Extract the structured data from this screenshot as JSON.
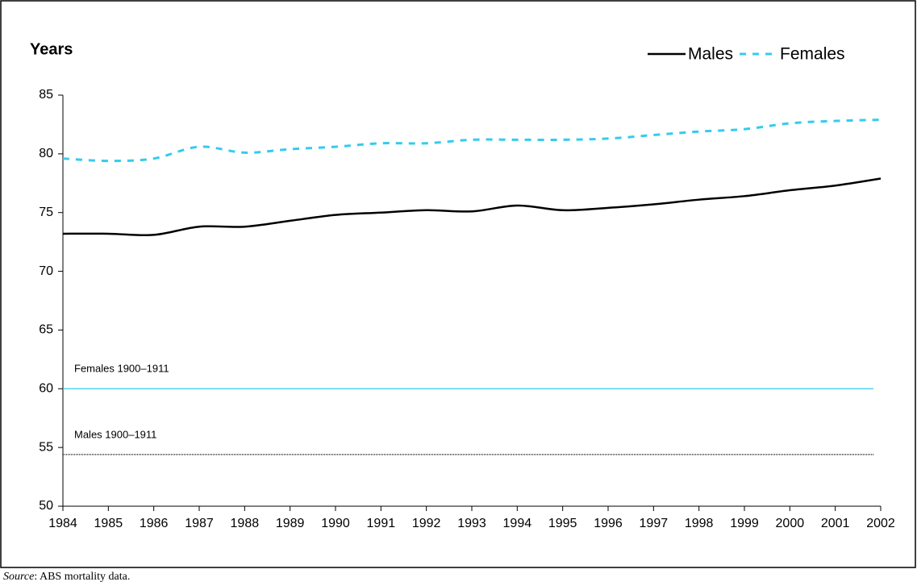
{
  "chart_data": {
    "type": "line",
    "y_label": "Years",
    "x": [
      1984,
      1985,
      1986,
      1987,
      1988,
      1989,
      1990,
      1991,
      1992,
      1993,
      1994,
      1995,
      1996,
      1997,
      1998,
      1999,
      2000,
      2001,
      2002
    ],
    "series": [
      {
        "name": "Males",
        "color": "#000000",
        "dash": "solid",
        "values": [
          73.2,
          73.2,
          73.1,
          73.8,
          73.8,
          74.3,
          74.8,
          75.0,
          75.2,
          75.1,
          75.6,
          75.2,
          75.4,
          75.7,
          76.1,
          76.4,
          76.9,
          77.3,
          77.9
        ]
      },
      {
        "name": "Females",
        "color": "#33ccee",
        "dash": "dashed",
        "values": [
          79.6,
          79.4,
          79.6,
          80.6,
          80.1,
          80.4,
          80.6,
          80.9,
          80.9,
          81.2,
          81.2,
          81.2,
          81.3,
          81.6,
          81.9,
          82.1,
          82.6,
          82.8,
          82.9
        ]
      }
    ],
    "reference_lines": [
      {
        "label": "Females 1900–1911",
        "value": 60.0,
        "color": "#33ccee",
        "dash": "solid"
      },
      {
        "label": "Males 1900–1911",
        "value": 54.4,
        "color": "#000000",
        "dash": "dotted"
      }
    ],
    "xlim": [
      1984,
      2002
    ],
    "xticks": [
      1984,
      1985,
      1986,
      1987,
      1988,
      1989,
      1990,
      1991,
      1992,
      1993,
      1994,
      1995,
      1996,
      1997,
      1998,
      1999,
      2000,
      2001,
      2002
    ],
    "ylim": [
      50,
      85
    ],
    "yticks": [
      50,
      55,
      60,
      65,
      70,
      75,
      80,
      85
    ],
    "legend": "top-right",
    "source_label": "Source",
    "source_text": ":  ABS mortality data."
  }
}
